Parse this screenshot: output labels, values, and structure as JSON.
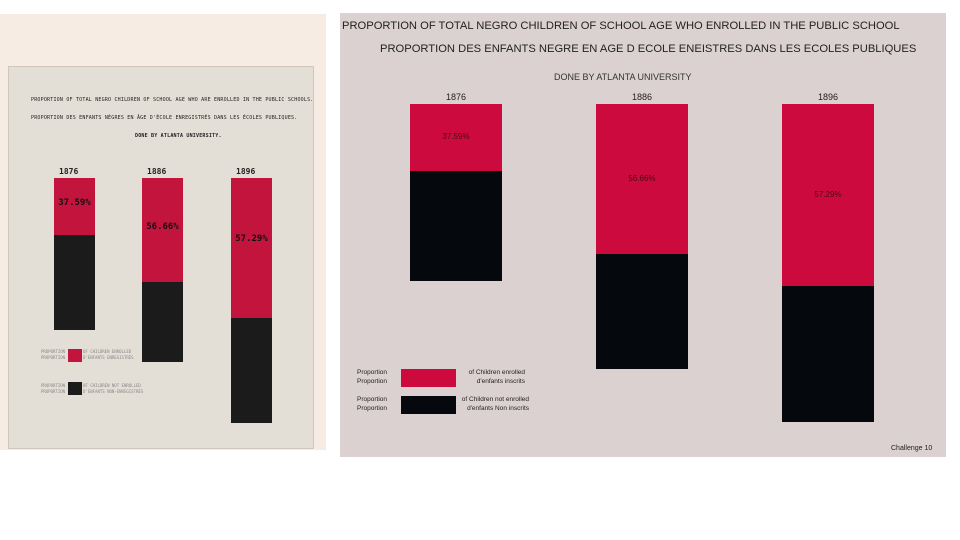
{
  "slide_number": "10",
  "original": {
    "title_en": "PROPORTION OF TOTAL NEGRO CHILDREN OF SCHOOL AGE WHO ARE ENROLLED IN THE PUBLIC SCHOOLS.",
    "title_fr": "PROPORTION DES ENFANTS NÈGRES EN ÂGE D'ÉCOLE ENREGISTRÉS DANS LES ÉCOLES PUBLIQUES.",
    "credit": "DONE BY ATLANTA UNIVERSITY.",
    "bars": [
      {
        "year": "1876",
        "label": "37.59%"
      },
      {
        "year": "1886",
        "label": "56.66%"
      },
      {
        "year": "1896",
        "label": "57.29%"
      }
    ],
    "legend": [
      {
        "line1": "PROPORTION",
        "line2": "PROPORTION",
        "text1": "OF CHILDREN ENROLLED",
        "text2": "D'ENFANTS ENREGISTRÉS"
      },
      {
        "line1": "PROPORTION",
        "line2": "PROPORTION",
        "text1": "OF CHILDREN NOT ENROLLED",
        "text2": "D'ENFANTS NON-ENREGISTRÉS"
      }
    ]
  },
  "recreation": {
    "title_en": "PROPORTION OF TOTAL NEGRO CHILDREN OF SCHOOL AGE WHO ENROLLED IN THE PUBLIC SCHOOL",
    "title_fr": "PROPORTION DES ENFANTS NEGRE EN AGE D ECOLE ENEISTRES DANS LES ECOLES PUBLIQUES",
    "subtitle": "DONE BY ATLANTA UNIVERSITY",
    "legend": [
      {
        "prop1": "Proportion",
        "prop2": "Proportion",
        "text1": "of Children enrolled",
        "text2": "d'enfants inscrits"
      },
      {
        "prop1": "Proportion",
        "prop2": "Proportion",
        "text1": "of Children not enrolled",
        "text2": "d'enfants Non inscrits"
      }
    ],
    "caption": "Challenge 10"
  },
  "colors": {
    "enrolled_original": "#c2143d",
    "not_enrolled_original": "#1c1b1b",
    "enrolled": "#cc0a3d",
    "not_enrolled": "#05090d"
  },
  "chart_data": [
    {
      "type": "bar",
      "stacked": true,
      "categories": [
        "1876",
        "1886",
        "1896"
      ],
      "series": [
        {
          "name": "PROPORTION OF CHILDREN ENROLLED",
          "values": [
            37.59,
            56.66,
            57.29
          ]
        },
        {
          "name": "PROPORTION OF CHILDREN NOT ENROLLED",
          "values": [
            62.41,
            43.34,
            42.71
          ]
        }
      ],
      "data_labels": [
        "37.59%",
        "56.66%",
        "57.29%"
      ],
      "title": "PROPORTION OF TOTAL NEGRO CHILDREN OF SCHOOL AGE WHO ARE ENROLLED IN THE PUBLIC SCHOOLS.",
      "unit": "%",
      "legend_position": "bottom-left",
      "grid": false
    },
    {
      "type": "bar",
      "stacked": true,
      "categories": [
        "1876",
        "1886",
        "1896"
      ],
      "series": [
        {
          "name": "of Children enrolled",
          "values": [
            37.59,
            56.66,
            57.29
          ]
        },
        {
          "name": "of Children not enrolled",
          "values": [
            62.41,
            43.34,
            42.71
          ]
        }
      ],
      "data_labels": [
        "37.59%",
        "56.66%",
        "57.29%"
      ],
      "title": "PROPORTION OF TOTAL NEGRO CHILDREN OF SCHOOL AGE WHO ENROLLED IN THE PUBLIC SCHOOL",
      "unit": "%",
      "legend_position": "bottom-left",
      "grid": false
    }
  ]
}
